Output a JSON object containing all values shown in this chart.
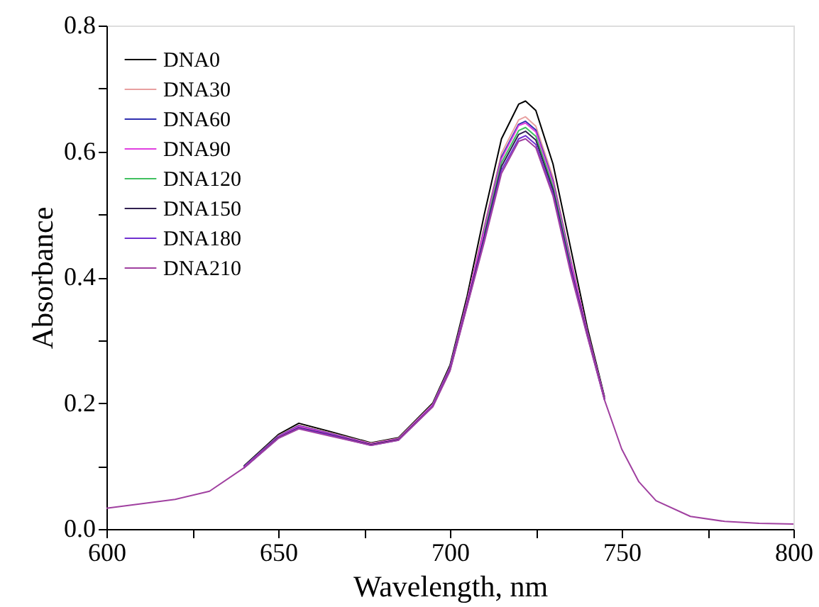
{
  "chart_data": {
    "type": "line",
    "xlabel": "Wavelength, nm",
    "ylabel": "Absorbance",
    "x": [
      600,
      610,
      620,
      630,
      640,
      650,
      656,
      665,
      677,
      685,
      695,
      700,
      705,
      710,
      715,
      720,
      722,
      725,
      730,
      735,
      740,
      745,
      750,
      755,
      760,
      770,
      780,
      790,
      800
    ],
    "xlim": [
      600,
      800
    ],
    "ylim": [
      0,
      0.8
    ],
    "xticks": [
      600,
      {
        "value": 625,
        "label": null
      },
      650,
      {
        "value": 675,
        "label": null
      },
      700,
      {
        "value": 725,
        "label": null
      },
      750,
      {
        "value": 775,
        "label": null
      },
      800
    ],
    "yticks": [
      {
        "value": 0,
        "label": "0.0"
      },
      {
        "value": 0.1,
        "label": null
      },
      0.2,
      {
        "value": 0.3,
        "label": null
      },
      0.4,
      {
        "value": 0.5,
        "label": null
      },
      0.6,
      {
        "value": 0.7,
        "label": null
      },
      0.8
    ],
    "legend": "top left",
    "grid": false,
    "marker": "none",
    "line_style": "solid",
    "series": [
      {
        "name": "DNA0",
        "color": "#000000",
        "values": [
          null,
          null,
          null,
          null,
          0.1,
          0.15,
          0.168,
          0.155,
          0.137,
          0.145,
          0.2,
          0.26,
          0.37,
          0.5,
          0.62,
          0.675,
          0.68,
          0.665,
          0.58,
          0.45,
          0.32,
          0.21,
          null,
          null,
          null,
          null,
          null,
          null,
          null
        ]
      },
      {
        "name": "DNA30",
        "color": "#e8a0a0",
        "values": [
          null,
          null,
          null,
          null,
          0.099,
          0.148,
          0.165,
          0.153,
          0.136,
          0.144,
          0.198,
          0.257,
          0.363,
          0.482,
          0.597,
          0.65,
          0.655,
          0.64,
          0.559,
          0.433,
          0.314,
          0.208,
          null,
          null,
          null,
          null,
          null,
          null,
          null
        ]
      },
      {
        "name": "DNA60",
        "color": "#3030b0",
        "values": [
          null,
          null,
          null,
          null,
          0.099,
          0.147,
          0.164,
          0.152,
          0.135,
          0.143,
          0.197,
          0.256,
          0.361,
          0.477,
          0.591,
          0.643,
          0.648,
          0.634,
          0.553,
          0.429,
          0.312,
          0.207,
          null,
          null,
          null,
          null,
          null,
          null,
          null
        ]
      },
      {
        "name": "DNA90",
        "color": "#e040e0",
        "values": [
          null,
          null,
          null,
          null,
          0.098,
          0.146,
          0.163,
          0.151,
          0.135,
          0.143,
          0.197,
          0.255,
          0.361,
          0.475,
          0.588,
          0.641,
          0.645,
          0.631,
          0.55,
          0.427,
          0.312,
          0.207,
          null,
          null,
          null,
          null,
          null,
          null,
          null
        ]
      },
      {
        "name": "DNA120",
        "color": "#40c060",
        "values": [
          null,
          null,
          null,
          null,
          null,
          null,
          null,
          null,
          null,
          null,
          null,
          null,
          null,
          0.469,
          0.582,
          0.633,
          0.638,
          0.624,
          0.544,
          0.422,
          null,
          null,
          null,
          null,
          null,
          null,
          null,
          null,
          null
        ]
      },
      {
        "name": "DNA150",
        "color": "#302050",
        "values": [
          null,
          null,
          null,
          null,
          0.097,
          0.145,
          0.161,
          0.15,
          0.134,
          0.142,
          0.195,
          0.253,
          0.357,
          0.465,
          0.576,
          0.627,
          0.632,
          0.618,
          0.539,
          0.418,
          0.309,
          0.206,
          null,
          null,
          null,
          null,
          null,
          null,
          null
        ]
      },
      {
        "name": "DNA180",
        "color": "#7030d0",
        "values": [
          null,
          null,
          null,
          null,
          0.097,
          0.144,
          0.16,
          0.149,
          0.133,
          0.141,
          0.195,
          0.252,
          0.355,
          0.46,
          0.57,
          0.62,
          0.625,
          0.611,
          0.533,
          0.414,
          0.307,
          0.205,
          null,
          null,
          null,
          null,
          null,
          null,
          null
        ]
      },
      {
        "name": "DNA210",
        "color": "#a040a0",
        "values": [
          0.033,
          0.04,
          0.047,
          0.06,
          0.097,
          0.144,
          0.159,
          0.148,
          0.133,
          0.141,
          0.194,
          0.251,
          0.354,
          0.456,
          0.565,
          0.616,
          0.62,
          0.606,
          0.529,
          0.41,
          0.306,
          0.205,
          0.127,
          0.075,
          0.045,
          0.02,
          0.012,
          0.009,
          0.008
        ]
      }
    ]
  }
}
